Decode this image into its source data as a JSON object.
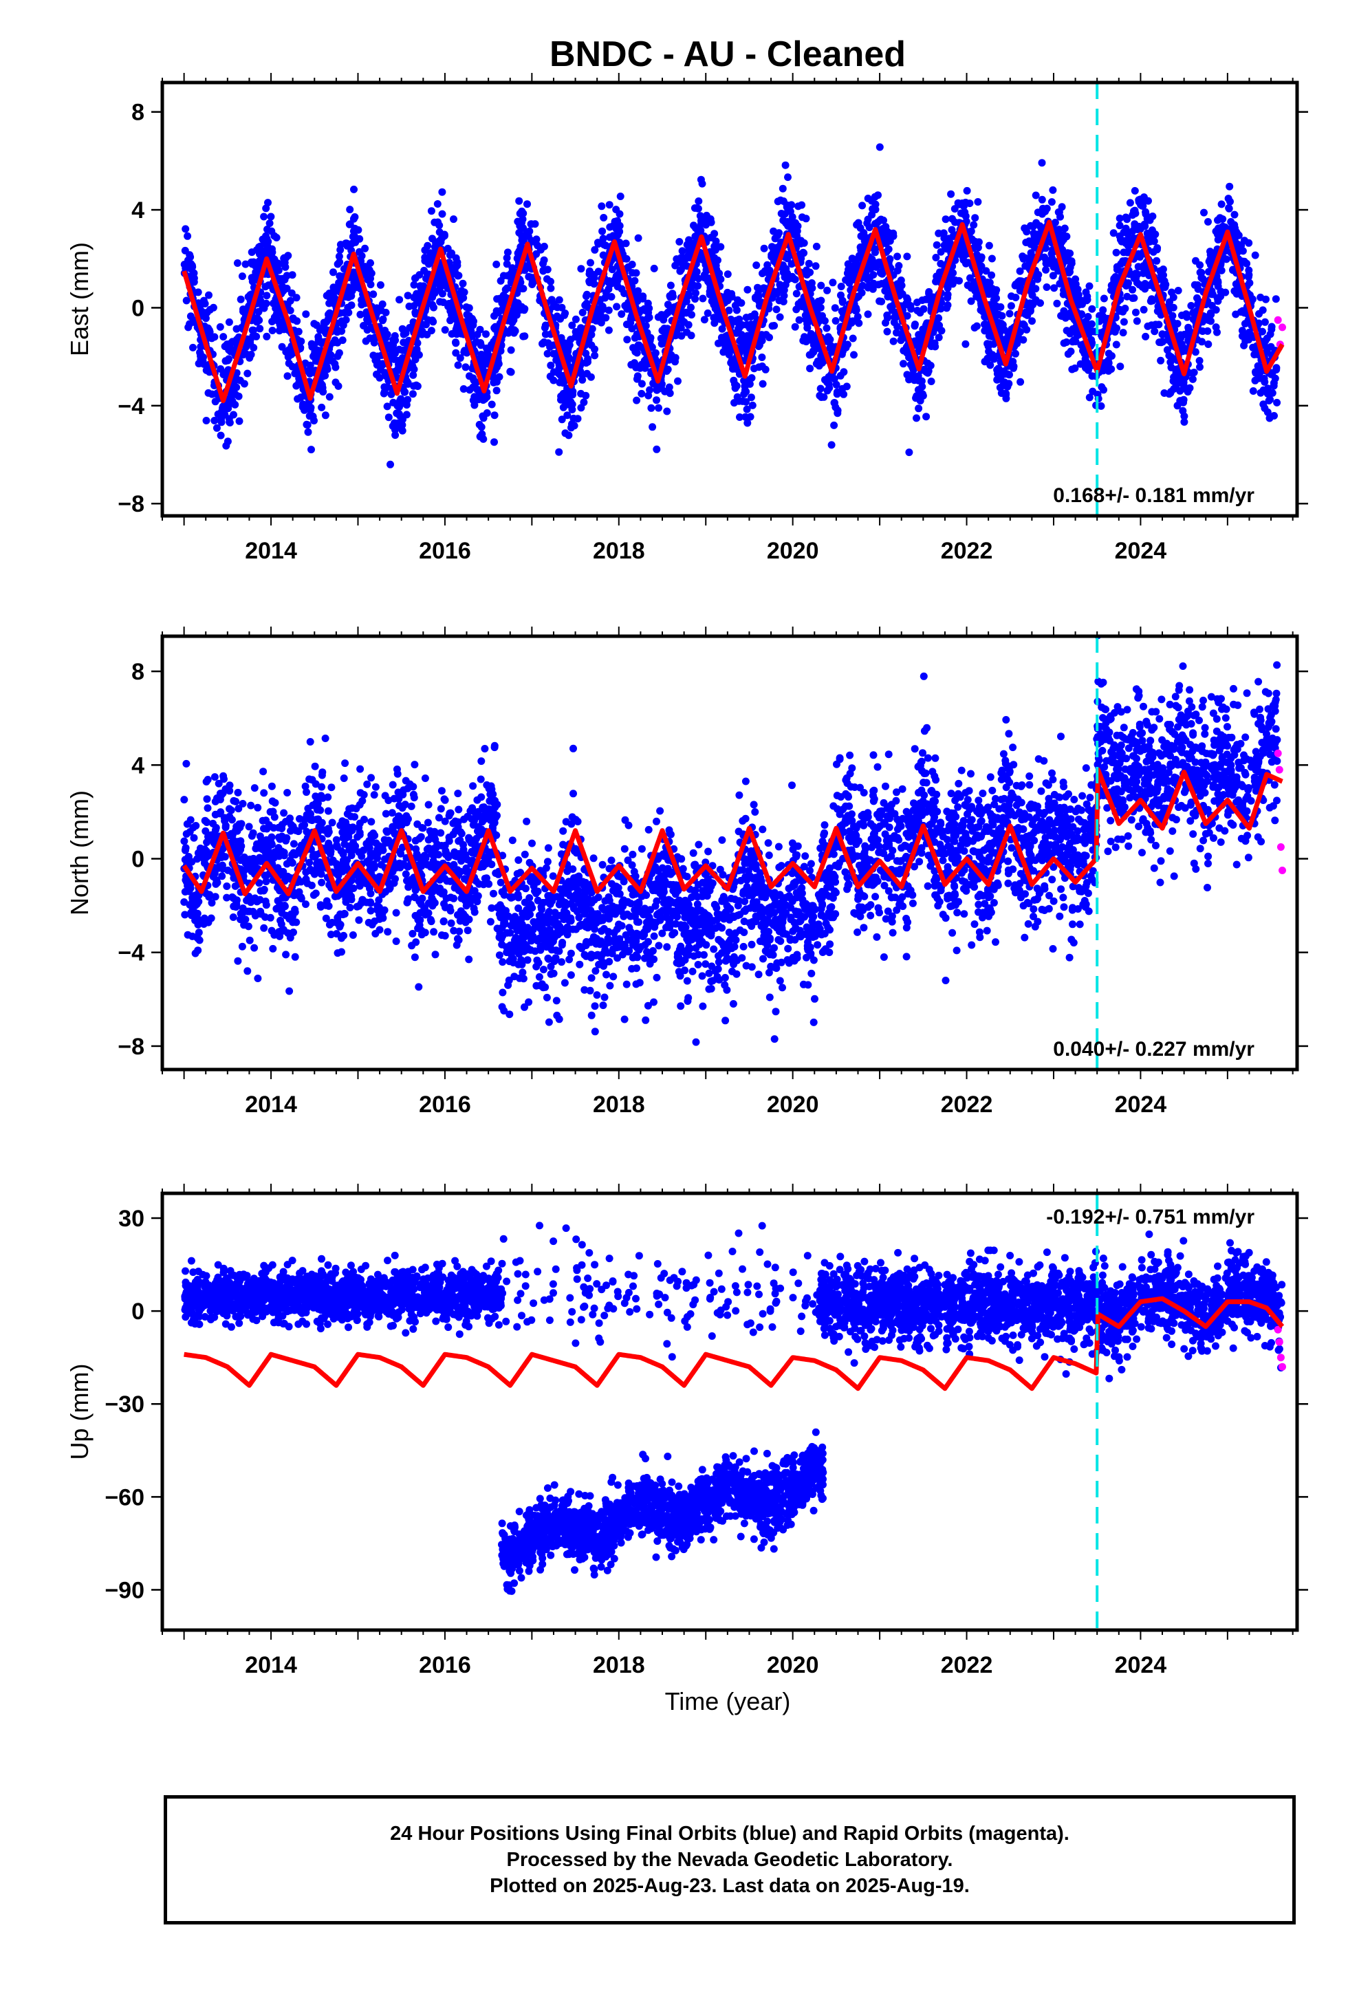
{
  "title": "BNDC  - AU - Cleaned",
  "x_axis_title": "Time (year)",
  "footer": {
    "line1": "24 Hour Positions Using Final Orbits (blue) and Rapid Orbits (magenta).",
    "line2": "Processed by the Nevada Geodetic Laboratory.",
    "line3": "Plotted on 2025-Aug-23. Last data on 2025-Aug-19."
  },
  "colors": {
    "final_orbits": "#0000ff",
    "rapid_orbits": "#ff00ff",
    "model_fit": "#ff0000",
    "equipment_change": "#00e5e5"
  },
  "chart_data": [
    {
      "type": "scatter",
      "ylabel": "East (mm)",
      "xlim": [
        2012.75,
        2025.8
      ],
      "ylim": [
        -8.5,
        9.2
      ],
      "yticks": [
        -8,
        -4,
        0,
        4,
        8
      ],
      "yticklabels": [
        "−8",
        "−4",
        "0",
        "4",
        "8"
      ],
      "xticks": [
        2014,
        2016,
        2018,
        2020,
        2022,
        2024
      ],
      "xticklabels": [
        "2014",
        "2016",
        "2018",
        "2020",
        "2022",
        "2024"
      ],
      "rate_label": "0.168+/- 0.181 mm/yr",
      "rate_position": "bottom-right",
      "equipment_change": 2023.5,
      "data_start": 2013.0,
      "data_end": 2025.63,
      "series": [
        {
          "kind": "model",
          "x": [
            2013.0,
            2013.25,
            2013.45,
            2013.7,
            2013.95,
            2014.2,
            2014.45,
            2014.7,
            2014.95,
            2015.2,
            2015.45,
            2015.7,
            2015.95,
            2016.2,
            2016.45,
            2016.7,
            2016.95,
            2017.2,
            2017.45,
            2017.7,
            2017.95,
            2018.2,
            2018.45,
            2018.7,
            2018.95,
            2019.2,
            2019.45,
            2019.7,
            2019.95,
            2020.2,
            2020.45,
            2020.7,
            2020.95,
            2021.2,
            2021.45,
            2021.7,
            2021.95,
            2022.2,
            2022.45,
            2022.7,
            2022.95,
            2023.2,
            2023.5,
            2023.75,
            2024.0,
            2024.25,
            2024.5,
            2024.75,
            2025.0,
            2025.25,
            2025.45,
            2025.63
          ],
          "y": [
            1.5,
            -1.5,
            -3.8,
            -1.0,
            2.0,
            -0.6,
            -3.7,
            -0.8,
            2.2,
            -0.7,
            -3.5,
            -0.5,
            2.4,
            -0.6,
            -3.4,
            -0.3,
            2.6,
            -0.4,
            -3.2,
            0.0,
            2.7,
            -0.3,
            -3.0,
            0.2,
            2.9,
            -0.1,
            -2.8,
            0.4,
            3.0,
            0.0,
            -2.6,
            0.6,
            3.2,
            0.2,
            -2.5,
            0.8,
            3.4,
            0.4,
            -2.3,
            1.0,
            3.5,
            0.3,
            -2.6,
            0.8,
            3.0,
            0.2,
            -2.7,
            0.6,
            3.1,
            0.0,
            -2.6,
            -1.5
          ]
        },
        {
          "kind": "trend_envelope",
          "name": "Final Orbits",
          "annual_amplitude": 3.0,
          "noise_sd": 1.1,
          "count": 4400
        },
        {
          "kind": "rapid",
          "name": "Rapid Orbits",
          "x_range": [
            2025.58,
            2025.63
          ],
          "y": [
            -0.5,
            -1.5,
            -0.8
          ]
        }
      ]
    },
    {
      "type": "scatter",
      "ylabel": "North (mm)",
      "xlim": [
        2012.75,
        2025.8
      ],
      "ylim": [
        -9.0,
        9.5
      ],
      "yticks": [
        -8,
        -4,
        0,
        4,
        8
      ],
      "yticklabels": [
        "−8",
        "−4",
        "0",
        "4",
        "8"
      ],
      "xticks": [
        2014,
        2016,
        2018,
        2020,
        2022,
        2024
      ],
      "xticklabels": [
        "2014",
        "2016",
        "2018",
        "2020",
        "2022",
        "2024"
      ],
      "rate_label": "0.040+/- 0.227 mm/yr",
      "rate_position": "bottom-right",
      "equipment_change": 2023.5,
      "data_start": 2013.0,
      "data_end": 2025.63,
      "series": [
        {
          "kind": "model",
          "x": [
            2013.0,
            2013.2,
            2013.45,
            2013.7,
            2013.95,
            2014.2,
            2014.5,
            2014.75,
            2015.0,
            2015.25,
            2015.5,
            2015.75,
            2016.0,
            2016.25,
            2016.5,
            2016.75,
            2017.0,
            2017.25,
            2017.5,
            2017.75,
            2018.0,
            2018.25,
            2018.5,
            2018.75,
            2019.0,
            2019.25,
            2019.5,
            2019.75,
            2020.0,
            2020.25,
            2020.5,
            2020.75,
            2021.0,
            2021.25,
            2021.5,
            2021.75,
            2022.0,
            2022.25,
            2022.5,
            2022.75,
            2023.0,
            2023.25,
            2023.49,
            2023.51,
            2023.75,
            2024.0,
            2024.25,
            2024.5,
            2024.75,
            2025.0,
            2025.25,
            2025.45,
            2025.63
          ],
          "y": [
            -0.3,
            -1.4,
            1.1,
            -1.5,
            -0.2,
            -1.5,
            1.2,
            -1.4,
            -0.2,
            -1.4,
            1.2,
            -1.4,
            -0.3,
            -1.4,
            1.2,
            -1.4,
            -0.4,
            -1.4,
            1.2,
            -1.4,
            -0.3,
            -1.4,
            1.2,
            -1.3,
            -0.3,
            -1.3,
            1.3,
            -1.2,
            -0.2,
            -1.2,
            1.3,
            -1.2,
            -0.1,
            -1.2,
            1.4,
            -1.1,
            0.0,
            -1.1,
            1.4,
            -1.1,
            0.0,
            -1.0,
            0.0,
            3.8,
            1.5,
            2.5,
            1.3,
            3.7,
            1.5,
            2.5,
            1.3,
            3.6,
            3.3
          ]
        },
        {
          "kind": "trend_envelope",
          "name": "Final Orbits",
          "noise_sd": 1.5,
          "count": 4400
        },
        {
          "kind": "rapid",
          "name": "Rapid Orbits",
          "x_range": [
            2025.58,
            2025.63
          ],
          "y": [
            4.5,
            3.8,
            0.5,
            -0.5
          ]
        }
      ]
    },
    {
      "type": "scatter",
      "ylabel": "Up (mm)",
      "xlim": [
        2012.75,
        2025.8
      ],
      "ylim": [
        -103,
        38
      ],
      "yticks": [
        -90,
        -60,
        -30,
        0,
        30
      ],
      "yticklabels": [
        "−90",
        "−60",
        "−30",
        "0",
        "30"
      ],
      "xticks": [
        2014,
        2016,
        2018,
        2020,
        2022,
        2024
      ],
      "xticklabels": [
        "2014",
        "2016",
        "2018",
        "2020",
        "2022",
        "2024"
      ],
      "rate_label": "-0.192+/- 0.751 mm/yr",
      "rate_position": "top-right",
      "equipment_change": 2023.5,
      "data_start": 2013.0,
      "data_end": 2025.63,
      "series": [
        {
          "kind": "model",
          "x": [
            2013.0,
            2013.25,
            2013.5,
            2013.75,
            2014.0,
            2014.25,
            2014.5,
            2014.75,
            2015.0,
            2015.25,
            2015.5,
            2015.75,
            2016.0,
            2016.25,
            2016.5,
            2016.75,
            2017.0,
            2017.25,
            2017.5,
            2017.75,
            2018.0,
            2018.25,
            2018.5,
            2018.75,
            2019.0,
            2019.25,
            2019.5,
            2019.75,
            2020.0,
            2020.25,
            2020.5,
            2020.75,
            2021.0,
            2021.25,
            2021.5,
            2021.75,
            2022.0,
            2022.25,
            2022.5,
            2022.75,
            2023.0,
            2023.25,
            2023.49,
            2023.51,
            2023.75,
            2024.0,
            2024.25,
            2024.5,
            2024.75,
            2025.0,
            2025.25,
            2025.45,
            2025.63
          ],
          "y": [
            -14,
            -15,
            -18,
            -24,
            -14,
            -16,
            -18,
            -24,
            -14,
            -15,
            -18,
            -24,
            -14,
            -15,
            -18,
            -24,
            -14,
            -16,
            -18,
            -24,
            -14,
            -15,
            -18,
            -24,
            -14,
            -16,
            -18,
            -24,
            -15,
            -16,
            -19,
            -25,
            -15,
            -16,
            -19,
            -25,
            -15,
            -16,
            -19,
            -25,
            -15,
            -17,
            -20,
            -1,
            -5,
            3,
            4,
            0,
            -5,
            3,
            3,
            1,
            -5
          ]
        },
        {
          "kind": "upper_cluster",
          "name": "Final Orbits",
          "x_range": [
            2013.0,
            2016.65
          ],
          "center": 5,
          "noise_sd": 4.0,
          "count": 1400
        },
        {
          "kind": "sparse_cluster",
          "name": "Final Orbits",
          "x_range": [
            2016.65,
            2020.35
          ],
          "center": 5,
          "noise_sd": 8.0,
          "count": 160
        },
        {
          "kind": "lower_cluster",
          "name": "Final Orbits",
          "x_range": [
            2016.65,
            2020.35
          ],
          "center_start": -75,
          "center_end": -55,
          "noise_sd": 5.0,
          "count": 1600
        },
        {
          "kind": "upper_cluster",
          "name": "Final Orbits",
          "x_range": [
            2020.3,
            2025.63
          ],
          "center": 2,
          "noise_sd": 6.0,
          "count": 2100
        },
        {
          "kind": "rapid",
          "name": "Rapid Orbits",
          "x_range": [
            2025.58,
            2025.63
          ],
          "y": [
            -6,
            -10,
            -15,
            -18
          ]
        }
      ]
    }
  ]
}
